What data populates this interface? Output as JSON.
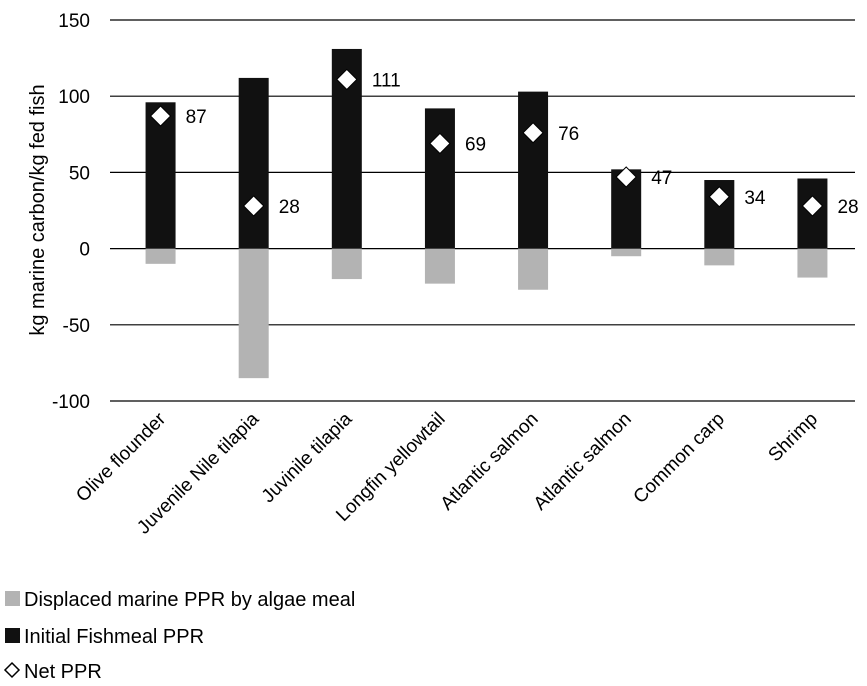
{
  "chart_data": {
    "type": "bar",
    "title": "",
    "xlabel": "",
    "ylabel": "kg marine carbon/kg fed fish",
    "ylim": [
      -100,
      150
    ],
    "yticks": [
      -100,
      -50,
      0,
      50,
      100,
      150
    ],
    "grid": "horizontal",
    "legend_position": "bottom-left",
    "categories": [
      "Olive flounder",
      "Juvenile Nile tilapia",
      "Juvinile tilapia",
      "Longfin yellowtail",
      "Atlantic salmon",
      "Atlantic salmon",
      "Common carp",
      "Shrimp"
    ],
    "series": [
      {
        "name": "Displaced marine PPR by algae meal",
        "kind": "bar",
        "color": "#b3b3b3",
        "values": [
          -10,
          -85,
          -20,
          -23,
          -27,
          -5,
          -11,
          -19
        ]
      },
      {
        "name": "Initial Fishmeal PPR",
        "kind": "bar",
        "color": "#111111",
        "values": [
          96,
          112,
          131,
          92,
          103,
          52,
          45,
          46
        ]
      },
      {
        "name": "Net PPR",
        "kind": "marker",
        "marker": "diamond",
        "color": "#ffffff",
        "values": [
          87,
          28,
          111,
          69,
          76,
          47,
          34,
          28
        ],
        "labels": [
          "87",
          "28",
          "111",
          "69",
          "76",
          "47",
          "34",
          "28"
        ]
      }
    ],
    "legend": [
      {
        "label": "Displaced marine PPR by algae meal",
        "symbol": "square-gray"
      },
      {
        "label": "Initial Fishmeal PPR",
        "symbol": "square-black"
      },
      {
        "label": "Net PPR",
        "symbol": "diamond-outline"
      }
    ]
  }
}
